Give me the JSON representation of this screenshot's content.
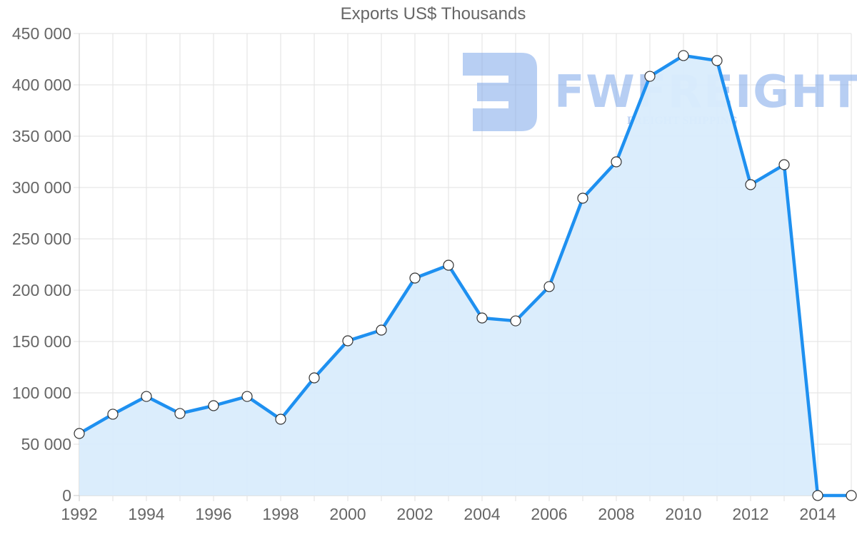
{
  "chart_data": {
    "type": "area",
    "title": "Exports US$ Thousands",
    "xlabel": "",
    "ylabel": "",
    "x": [
      1992,
      1993,
      1994,
      1995,
      1996,
      1997,
      1998,
      1999,
      2000,
      2001,
      2002,
      2003,
      2004,
      2005,
      2006,
      2007,
      2008,
      2009,
      2010,
      2011,
      2012,
      2013,
      2014,
      2015
    ],
    "series": [
      {
        "name": "Exports US$ Thousands",
        "values": [
          60400,
          79200,
          96500,
          79900,
          87500,
          96500,
          74300,
          114600,
          150700,
          161100,
          211800,
          224300,
          172900,
          170100,
          203500,
          289600,
          325000,
          408300,
          428500,
          423600,
          302800,
          322200,
          0,
          0
        ],
        "color": "#1e90f0",
        "fill": "#d9ecfc"
      }
    ],
    "ylim": [
      0,
      450000
    ],
    "yticks": [
      0,
      50000,
      100000,
      150000,
      200000,
      250000,
      300000,
      350000,
      400000,
      450000
    ],
    "ytick_labels": [
      "0",
      "50 000",
      "100 000",
      "150 000",
      "200 000",
      "250 000",
      "300 000",
      "350 000",
      "400 000",
      "450 000"
    ],
    "xtick_labels": [
      "1992",
      "1994",
      "1996",
      "1998",
      "2000",
      "2002",
      "2004",
      "2006",
      "2008",
      "2010",
      "2012",
      "2014"
    ],
    "grid": true,
    "legend": "none"
  },
  "watermark": {
    "brand": "FWFREIGHT",
    "tagline": "FREIGHT SHIPPING"
  }
}
